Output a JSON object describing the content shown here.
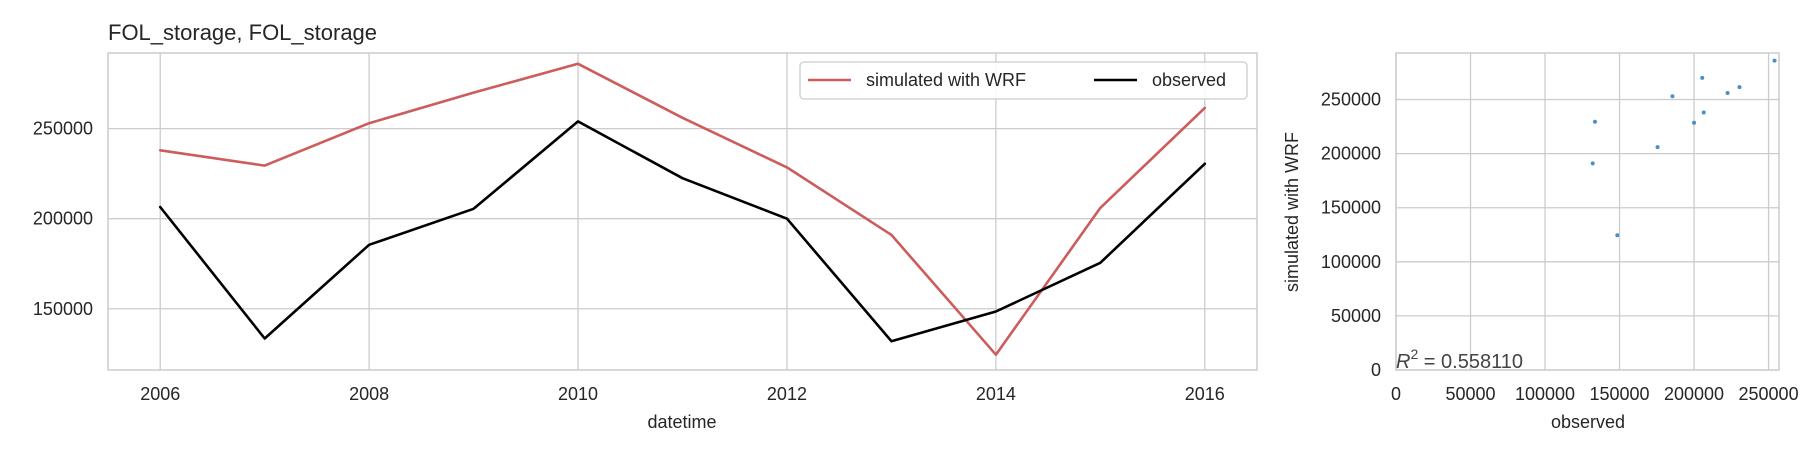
{
  "chart_data": [
    {
      "type": "line",
      "title": "FOL_storage, FOL_storage",
      "xlabel": "datetime",
      "ylabel": "",
      "x": [
        2006,
        2007,
        2008,
        2009,
        2010,
        2011,
        2012,
        2013,
        2014,
        2015,
        2016
      ],
      "xticks": [
        2006,
        2008,
        2010,
        2012,
        2014,
        2016
      ],
      "xlim": [
        2005.5,
        2016.5
      ],
      "yticks": [
        150000,
        200000,
        250000
      ],
      "ytick_labels": [
        "150000",
        "200000",
        "250000"
      ],
      "ylim": [
        116000,
        292000
      ],
      "grid": true,
      "legend": "top-right",
      "series": [
        {
          "name": "simulated with WRF",
          "color": "#cd5c5c",
          "values": [
            238000,
            229500,
            253000,
            270000,
            286000,
            256000,
            228500,
            191000,
            124500,
            206000,
            261500
          ]
        },
        {
          "name": "observed",
          "color": "#000000",
          "values": [
            206500,
            133500,
            185500,
            205500,
            254000,
            222500,
            200000,
            132000,
            148500,
            175500,
            230500
          ]
        }
      ]
    },
    {
      "type": "scatter",
      "title": "",
      "xlabel": "observed",
      "ylabel": "simulated with WRF",
      "xticks": [
        0,
        50000,
        100000,
        150000,
        200000,
        250000
      ],
      "xtick_labels": [
        "0",
        "50000",
        "100000",
        "150000",
        "200000",
        "250000"
      ],
      "yticks": [
        0,
        50000,
        100000,
        150000,
        200000,
        250000
      ],
      "ytick_labels": [
        "0",
        "50000",
        "100000",
        "150000",
        "200000",
        "250000"
      ],
      "xlim": [
        0,
        257000
      ],
      "ylim": [
        0,
        293000
      ],
      "grid": true,
      "color": "#4c8ec4",
      "annotation": "R^2 = 0.558110",
      "points": [
        {
          "x": 206500,
          "y": 238000
        },
        {
          "x": 133500,
          "y": 229500
        },
        {
          "x": 185500,
          "y": 253000
        },
        {
          "x": 205500,
          "y": 270000
        },
        {
          "x": 254000,
          "y": 286000
        },
        {
          "x": 222500,
          "y": 256000
        },
        {
          "x": 200000,
          "y": 228500
        },
        {
          "x": 132000,
          "y": 191000
        },
        {
          "x": 148500,
          "y": 124500
        },
        {
          "x": 175500,
          "y": 206000
        },
        {
          "x": 230500,
          "y": 261500
        }
      ]
    }
  ]
}
